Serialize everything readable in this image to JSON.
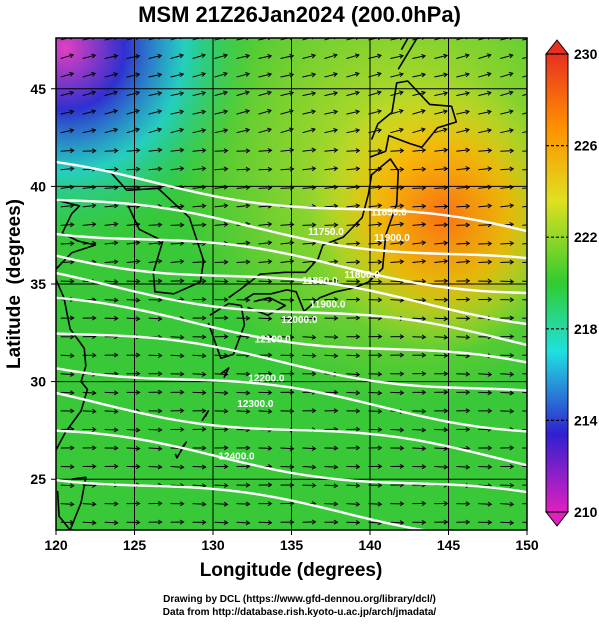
{
  "title": "MSM 21Z26Jan2024 (200.0hPa)",
  "x_axis": {
    "label": "Longitude (degrees)",
    "range": [
      120,
      150
    ],
    "ticks": [
      "120",
      "125",
      "130",
      "135",
      "140",
      "145",
      "150"
    ]
  },
  "y_axis": {
    "label": "Latitude  (degrees)",
    "range": [
      22.4,
      47.6
    ],
    "ticks": [
      "25",
      "30",
      "35",
      "40",
      "45"
    ]
  },
  "colorbar": {
    "range": [
      210,
      230
    ],
    "ticks": [
      "210",
      "214",
      "218",
      "222",
      "226",
      "230"
    ],
    "colors": [
      "#e020c0",
      "#3020d0",
      "#20e0e0",
      "#30cc30",
      "#e0e020",
      "#ff9000",
      "#e83020"
    ]
  },
  "contours": {
    "color": "#ffffff",
    "labels": [
      "11850.0",
      "11900.0",
      "11750.0",
      "11800.0",
      "11850.0",
      "11900.0",
      "12000.0",
      "12100.0",
      "12200.0",
      "12300.0",
      "12400.0"
    ]
  },
  "credits": {
    "line1": "Drawing by DCL (https://www.gfd-dennou.org/library/dcl/)",
    "line2": "Data from http://database.rish.kyoto-u.ac.jp/arch/jmadata/"
  }
}
